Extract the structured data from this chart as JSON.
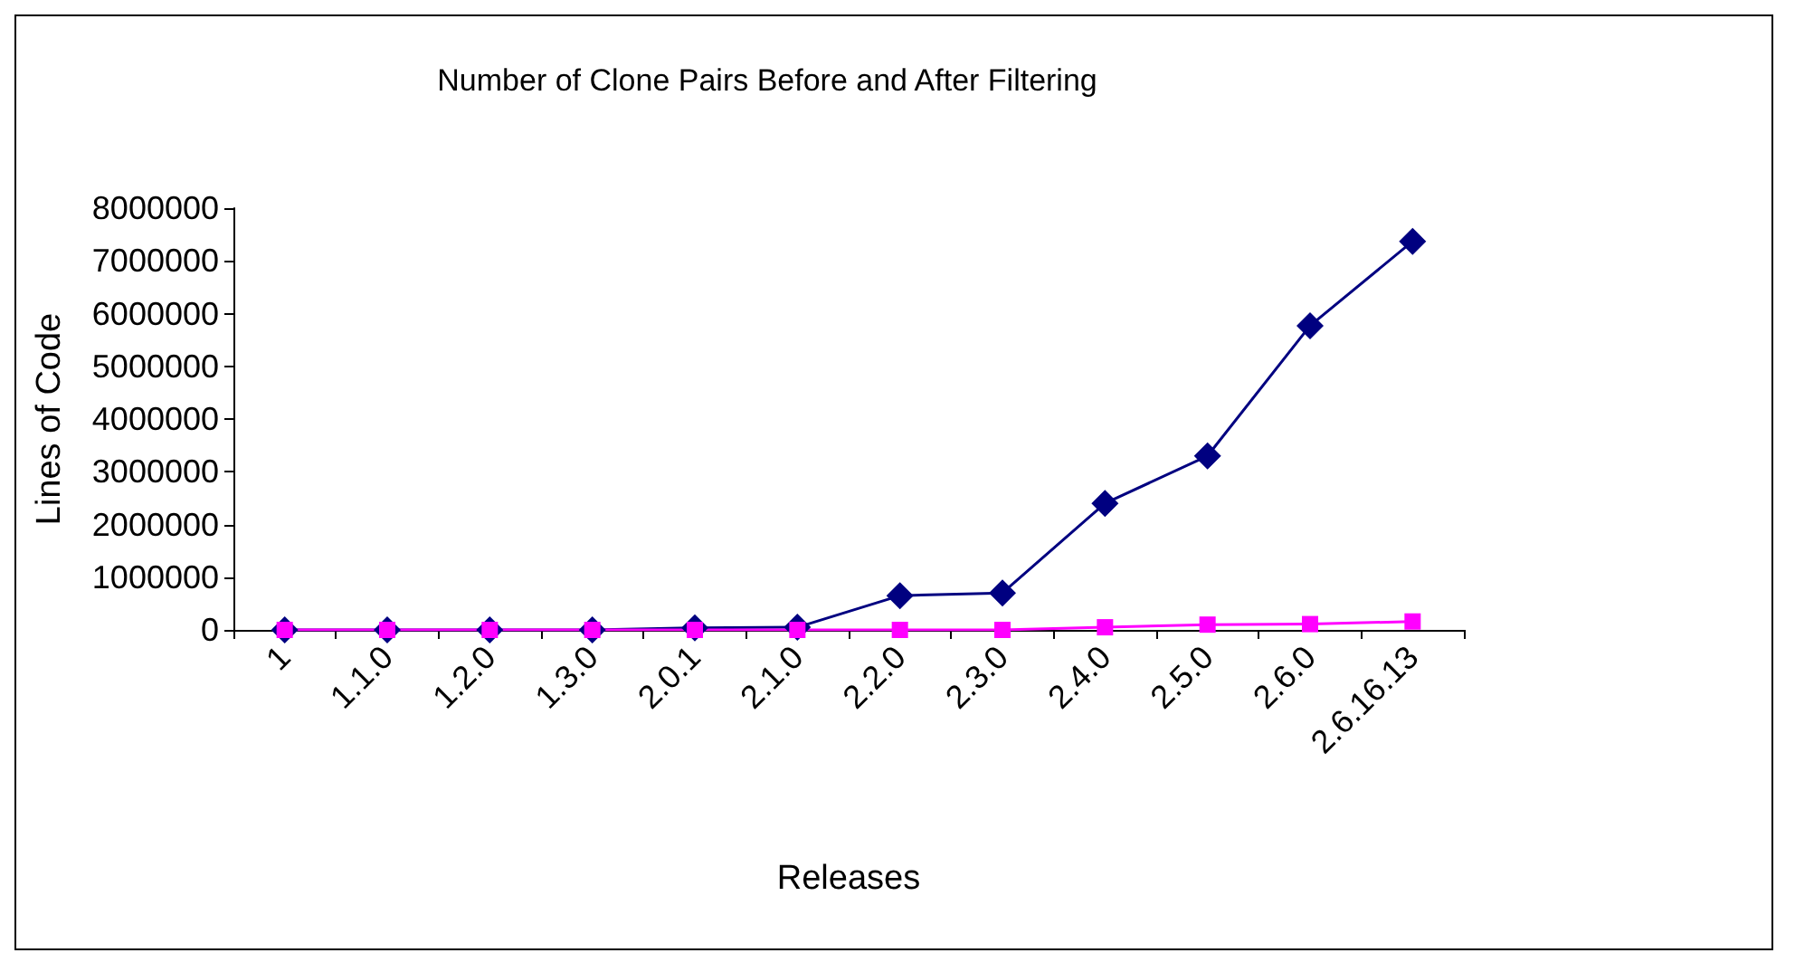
{
  "chart_data": {
    "type": "line",
    "title": "Number of Clone Pairs Before and After Filtering",
    "xlabel": "Releases",
    "ylabel": "Lines of Code",
    "categories": [
      "1",
      "1.1.0",
      "1.2.0",
      "1.3.0",
      "2.0.1",
      "2.1.0",
      "2.2.0",
      "2.3.0",
      "2.4.0",
      "2.5.0",
      "2.6.0",
      "2.6.16.13"
    ],
    "series": [
      {
        "color": "#000080",
        "marker": "diamond",
        "values": [
          0,
          0,
          0,
          0,
          40000,
          50000,
          650000,
          700000,
          2400000,
          3300000,
          5770000,
          7370000
        ]
      },
      {
        "color": "#ff00ff",
        "marker": "square",
        "values": [
          0,
          0,
          0,
          0,
          0,
          0,
          0,
          0,
          50000,
          100000,
          110000,
          160000
        ]
      }
    ],
    "ylim": [
      0,
      8000000
    ],
    "yticks": [
      0,
      1000000,
      2000000,
      3000000,
      4000000,
      5000000,
      6000000,
      7000000,
      8000000
    ],
    "grid": false
  }
}
